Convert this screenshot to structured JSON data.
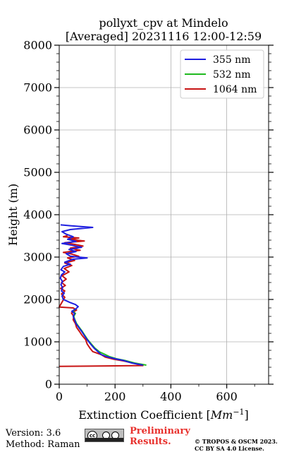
{
  "chart_data": {
    "type": "line",
    "title": "pollyxt_cpv at Mindelo",
    "subtitle": "[Averaged] 20231116 12:00-12:59",
    "xlabel": "Extinction Coefficient [Mm⁻¹]",
    "ylabel": "Height (m)",
    "xlim": [
      0,
      750
    ],
    "ylim": [
      0,
      8000
    ],
    "xticks": [
      0,
      200,
      400,
      600
    ],
    "yticks": [
      0,
      1000,
      2000,
      3000,
      4000,
      5000,
      6000,
      7000,
      8000
    ],
    "grid": true,
    "legend_position": "top-right",
    "series": [
      {
        "name": "355 nm",
        "color": "#1f1fe0",
        "points": [
          [
            300,
            450
          ],
          [
            260,
            500
          ],
          [
            230,
            560
          ],
          [
            200,
            600
          ],
          [
            170,
            650
          ],
          [
            150,
            700
          ],
          [
            140,
            760
          ],
          [
            125,
            850
          ],
          [
            112,
            950
          ],
          [
            100,
            1050
          ],
          [
            90,
            1150
          ],
          [
            80,
            1250
          ],
          [
            70,
            1340
          ],
          [
            60,
            1430
          ],
          [
            55,
            1520
          ],
          [
            50,
            1600
          ],
          [
            55,
            1670
          ],
          [
            45,
            1720
          ],
          [
            60,
            1780
          ],
          [
            68,
            1830
          ],
          [
            58,
            1880
          ],
          [
            38,
            1930
          ],
          [
            15,
            2000
          ],
          [
            10,
            2080
          ],
          [
            18,
            2150
          ],
          [
            8,
            2200
          ],
          [
            12,
            2280
          ],
          [
            6,
            2350
          ],
          [
            12,
            2420
          ],
          [
            4,
            2500
          ],
          [
            8,
            2580
          ],
          [
            20,
            2650
          ],
          [
            6,
            2700
          ],
          [
            15,
            2780
          ],
          [
            40,
            2830
          ],
          [
            20,
            2880
          ],
          [
            50,
            2950
          ],
          [
            100,
            2980
          ],
          [
            40,
            3020
          ],
          [
            25,
            3080
          ],
          [
            60,
            3130
          ],
          [
            35,
            3180
          ],
          [
            80,
            3230
          ],
          [
            45,
            3280
          ],
          [
            10,
            3320
          ],
          [
            60,
            3370
          ],
          [
            30,
            3420
          ],
          [
            50,
            3480
          ],
          [
            25,
            3540
          ],
          [
            10,
            3600
          ],
          [
            40,
            3650
          ],
          [
            120,
            3700
          ],
          [
            40,
            3740
          ],
          [
            5,
            3760
          ]
        ]
      },
      {
        "name": "532 nm",
        "color": "#1fba1f",
        "points": [
          [
            312,
            450
          ],
          [
            270,
            500
          ],
          [
            235,
            560
          ],
          [
            205,
            600
          ],
          [
            180,
            650
          ],
          [
            165,
            700
          ],
          [
            145,
            760
          ],
          [
            128,
            850
          ],
          [
            115,
            950
          ],
          [
            102,
            1050
          ],
          [
            92,
            1150
          ],
          [
            82,
            1250
          ],
          [
            72,
            1340
          ],
          [
            62,
            1430
          ],
          [
            56,
            1520
          ],
          [
            52,
            1600
          ],
          [
            58,
            1670
          ],
          [
            48,
            1720
          ],
          [
            60,
            1780
          ]
        ]
      },
      {
        "name": "1064 nm",
        "color": "#c81414",
        "points": [
          [
            0,
            420
          ],
          [
            300,
            440
          ],
          [
            270,
            490
          ],
          [
            230,
            550
          ],
          [
            195,
            590
          ],
          [
            165,
            640
          ],
          [
            150,
            700
          ],
          [
            120,
            770
          ],
          [
            110,
            850
          ],
          [
            100,
            950
          ],
          [
            95,
            1050
          ],
          [
            82,
            1150
          ],
          [
            72,
            1250
          ],
          [
            62,
            1340
          ],
          [
            58,
            1430
          ],
          [
            50,
            1520
          ],
          [
            52,
            1600
          ],
          [
            44,
            1680
          ],
          [
            62,
            1750
          ],
          [
            50,
            1800
          ],
          [
            0,
            1820
          ],
          [
            20,
            2050
          ],
          [
            8,
            2130
          ],
          [
            20,
            2200
          ],
          [
            5,
            2260
          ],
          [
            22,
            2330
          ],
          [
            8,
            2400
          ],
          [
            25,
            2480
          ],
          [
            10,
            2560
          ],
          [
            35,
            2650
          ],
          [
            18,
            2730
          ],
          [
            45,
            2800
          ],
          [
            20,
            2860
          ],
          [
            55,
            2920
          ],
          [
            30,
            2980
          ],
          [
            70,
            3020
          ],
          [
            45,
            3070
          ],
          [
            15,
            3110
          ],
          [
            75,
            3160
          ],
          [
            40,
            3210
          ],
          [
            85,
            3260
          ],
          [
            55,
            3300
          ],
          [
            20,
            3340
          ],
          [
            90,
            3380
          ],
          [
            35,
            3420
          ],
          [
            70,
            3450
          ],
          [
            15,
            3480
          ],
          [
            30,
            3510
          ]
        ]
      }
    ]
  },
  "footer": {
    "version": "Version: 3.6",
    "method": "Method: Raman",
    "preliminary_line1": "Preliminary",
    "preliminary_line2": "Results.",
    "credit_line1": "© TROPOS & OSCM 2023.",
    "credit_line2": "CC BY SA 4.0 License.",
    "license_badge_text": "BY SA"
  }
}
